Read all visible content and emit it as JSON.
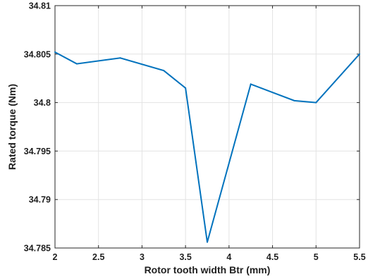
{
  "chart_data": {
    "type": "line",
    "xlabel": "Rotor tooth width Btr (mm)",
    "ylabel": "Rated torque (Nm)",
    "xlim": [
      2,
      5.5
    ],
    "ylim": [
      34.785,
      34.81
    ],
    "grid": true,
    "x_ticks": [
      "2",
      "2.5",
      "3",
      "3.5",
      "4",
      "4.5",
      "5",
      "5.5"
    ],
    "y_ticks": [
      "34.785",
      "34.79",
      "34.795",
      "34.8",
      "34.805",
      "34.81"
    ],
    "x_tick_values": [
      2,
      2.5,
      3,
      3.5,
      4,
      4.5,
      5,
      5.5
    ],
    "y_tick_values": [
      34.785,
      34.79,
      34.795,
      34.8,
      34.805,
      34.81
    ],
    "series": [
      {
        "color": "#0072bd",
        "x": [
          2,
          2.25,
          2.75,
          3.25,
          3.5,
          3.75,
          4.25,
          4.75,
          5,
          5.5
        ],
        "values": [
          34.8052,
          34.804,
          34.8046,
          34.8033,
          34.8015,
          34.7856,
          34.8019,
          34.8002,
          34.8,
          34.805
        ]
      }
    ]
  }
}
